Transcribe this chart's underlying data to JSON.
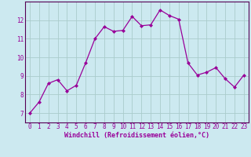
{
  "x": [
    0,
    1,
    2,
    3,
    4,
    5,
    6,
    7,
    8,
    9,
    10,
    11,
    12,
    13,
    14,
    15,
    16,
    17,
    18,
    19,
    20,
    21,
    22,
    23
  ],
  "y": [
    7.0,
    7.6,
    8.6,
    8.8,
    8.2,
    8.5,
    9.7,
    11.0,
    11.65,
    11.4,
    11.45,
    12.2,
    11.7,
    11.75,
    12.55,
    12.25,
    12.05,
    9.7,
    9.05,
    9.2,
    9.45,
    8.85,
    8.4,
    9.05
  ],
  "line_color": "#990099",
  "marker": "D",
  "marker_size": 2.0,
  "linewidth": 0.9,
  "xlabel": "Windchill (Refroidissement éolien,°C)",
  "xlabel_fontsize": 6.0,
  "xlim": [
    -0.5,
    23.5
  ],
  "ylim": [
    6.5,
    13.0
  ],
  "yticks": [
    7,
    8,
    9,
    10,
    11,
    12
  ],
  "xticks": [
    0,
    1,
    2,
    3,
    4,
    5,
    6,
    7,
    8,
    9,
    10,
    11,
    12,
    13,
    14,
    15,
    16,
    17,
    18,
    19,
    20,
    21,
    22,
    23
  ],
  "tick_fontsize": 5.5,
  "bg_color": "#cce9f0",
  "grid_color": "#aacccc",
  "spine_color": "#550055"
}
